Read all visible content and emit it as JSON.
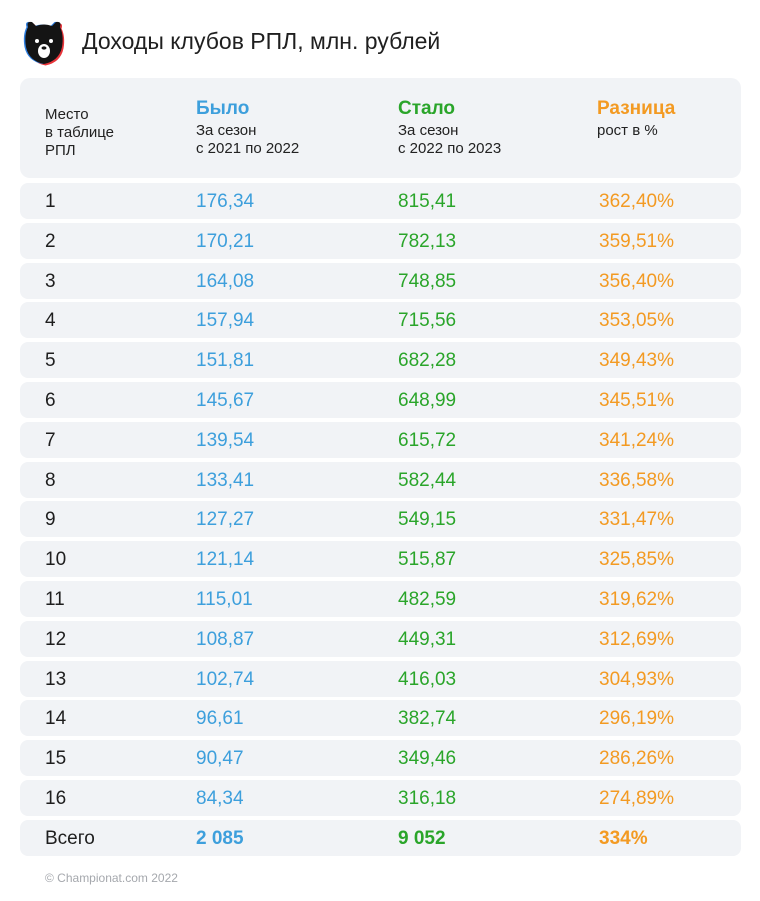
{
  "title": "Доходы клубов РПЛ, млн. рублей",
  "logo": "РПЛ bear logo",
  "colors": {
    "before": "#3d9fdc",
    "after": "#2aa52a",
    "diff": "#f39a22",
    "row_bg": "#f1f3f6"
  },
  "chart_data": {
    "type": "table",
    "columns": [
      {
        "title": "",
        "subtitle": [
          "Место",
          "в таблице",
          "РПЛ"
        ]
      },
      {
        "title": "Было",
        "subtitle": [
          "За сезон",
          "с 2021 по 2022"
        ]
      },
      {
        "title": "Стало",
        "subtitle": [
          "За сезон",
          "с 2022 по 2023"
        ]
      },
      {
        "title": "Разница",
        "subtitle": [
          "рост в %"
        ]
      }
    ],
    "rows": [
      [
        "1",
        "176,34",
        "815,41",
        "362,40%"
      ],
      [
        "2",
        "170,21",
        "782,13",
        "359,51%"
      ],
      [
        "3",
        "164,08",
        "748,85",
        "356,40%"
      ],
      [
        "4",
        "157,94",
        "715,56",
        "353,05%"
      ],
      [
        "5",
        "151,81",
        "682,28",
        "349,43%"
      ],
      [
        "6",
        "145,67",
        "648,99",
        "345,51%"
      ],
      [
        "7",
        "139,54",
        "615,72",
        "341,24%"
      ],
      [
        "8",
        "133,41",
        "582,44",
        "336,58%"
      ],
      [
        "9",
        "127,27",
        "549,15",
        "331,47%"
      ],
      [
        "10",
        "121,14",
        "515,87",
        "325,85%"
      ],
      [
        "11",
        "115,01",
        "482,59",
        "319,62%"
      ],
      [
        "12",
        "108,87",
        "449,31",
        "312,69%"
      ],
      [
        "13",
        "102,74",
        "416,03",
        "304,93%"
      ],
      [
        "14",
        "96,61",
        "382,74",
        "296,19%"
      ],
      [
        "15",
        "90,47",
        "349,46",
        "286,26%"
      ],
      [
        "16",
        "84,34",
        "316,18",
        "274,89%"
      ]
    ],
    "total": [
      "Всего",
      "2 085",
      "9 052",
      "334%"
    ]
  },
  "footer": "© Championat.com 2022"
}
